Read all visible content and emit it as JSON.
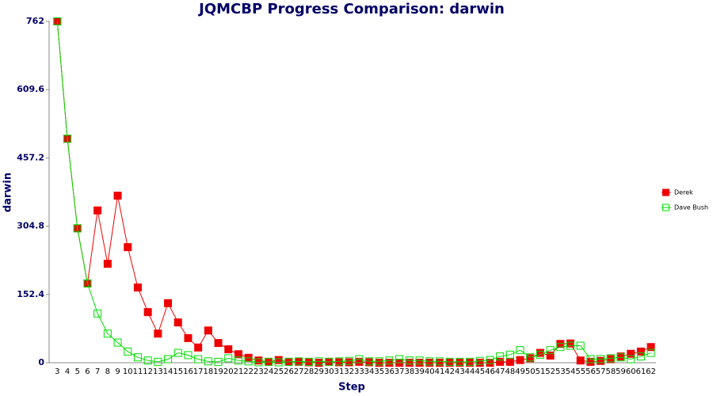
{
  "chart_data": {
    "type": "line",
    "title": "JQMCBP Progress Comparison: darwin",
    "x_label": "Step",
    "y_label": "darwin",
    "categories": [
      "3",
      "4",
      "5",
      "6",
      "7",
      "8",
      "9",
      "10",
      "11",
      "12",
      "13",
      "14",
      "15",
      "16",
      "17",
      "18",
      "19",
      "20",
      "21",
      "22",
      "23",
      "24",
      "25",
      "26",
      "27",
      "28",
      "29",
      "30",
      "31",
      "32",
      "33",
      "34",
      "35",
      "36",
      "37",
      "38",
      "39",
      "40",
      "41",
      "42",
      "43",
      "44",
      "45",
      "46",
      "47",
      "48",
      "49",
      "50",
      "51",
      "52",
      "53",
      "54",
      "55",
      "56",
      "57",
      "58",
      "59",
      "60",
      "61",
      "62"
    ],
    "series": [
      {
        "name": "Derek",
        "color": "#ee0000",
        "values": [
          762,
          500,
          300,
          177,
          340,
          221,
          373,
          258,
          168,
          113,
          65,
          133,
          90,
          55,
          34,
          72,
          44,
          30,
          19,
          11,
          5,
          2,
          6,
          2,
          2,
          1,
          0,
          2,
          1,
          1,
          2,
          1,
          0,
          0,
          0,
          0,
          0,
          0,
          0,
          0,
          0,
          0,
          0,
          0,
          2,
          2,
          6,
          10,
          22,
          16,
          42,
          43,
          5,
          2,
          4,
          8,
          14,
          20,
          25,
          35
        ]
      },
      {
        "name": "Dave Bush",
        "color": "#00dd00",
        "values": [
          762,
          500,
          300,
          177,
          110,
          65,
          45,
          25,
          12,
          5,
          2,
          8,
          22,
          17,
          8,
          3,
          2,
          10,
          5,
          3,
          1,
          2,
          1,
          2,
          3,
          2,
          3,
          2,
          3,
          4,
          8,
          3,
          3,
          5,
          8,
          5,
          5,
          3,
          3,
          2,
          2,
          2,
          4,
          6,
          14,
          18,
          28,
          12,
          18,
          28,
          35,
          38,
          38,
          8,
          8,
          10,
          12,
          8,
          14,
          22
        ]
      }
    ],
    "ylim": [
      0,
      762
    ],
    "yticks": [
      0,
      152.4,
      304.8,
      457.2,
      609.6,
      762
    ],
    "grid": false,
    "legend": "right"
  }
}
